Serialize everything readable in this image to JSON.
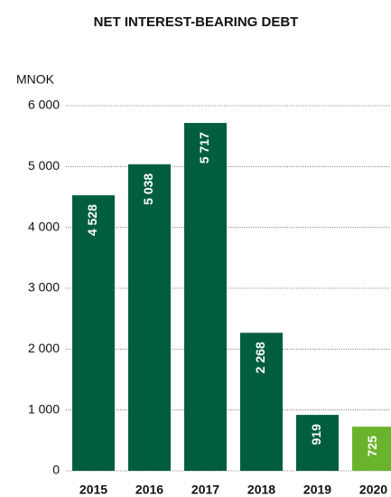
{
  "chart_data": {
    "type": "bar",
    "title": "NET INTEREST-BEARING DEBT",
    "y_label": "MNOK",
    "categories": [
      "2015",
      "2016",
      "2017",
      "2018",
      "2019",
      "2020"
    ],
    "values": [
      4528,
      5038,
      5717,
      2268,
      919,
      725
    ],
    "value_labels": [
      "4 528",
      "5 038",
      "5 717",
      "2 268",
      "919",
      "725"
    ],
    "colors": [
      "#005e3f",
      "#005e3f",
      "#005e3f",
      "#005e3f",
      "#005e3f",
      "#6ab42d"
    ],
    "ylim": [
      0,
      6000
    ],
    "yticks": [
      0,
      {
        "value": 1000,
        "label": "1 000"
      },
      {
        "value": 2000,
        "label": "2 000"
      },
      {
        "value": 3000,
        "label": "3 000"
      },
      {
        "value": 4000,
        "label": "4 000"
      },
      {
        "value": 5000,
        "label": "5 000"
      },
      {
        "value": 6000,
        "label": "6 000"
      }
    ],
    "grid": true
  }
}
